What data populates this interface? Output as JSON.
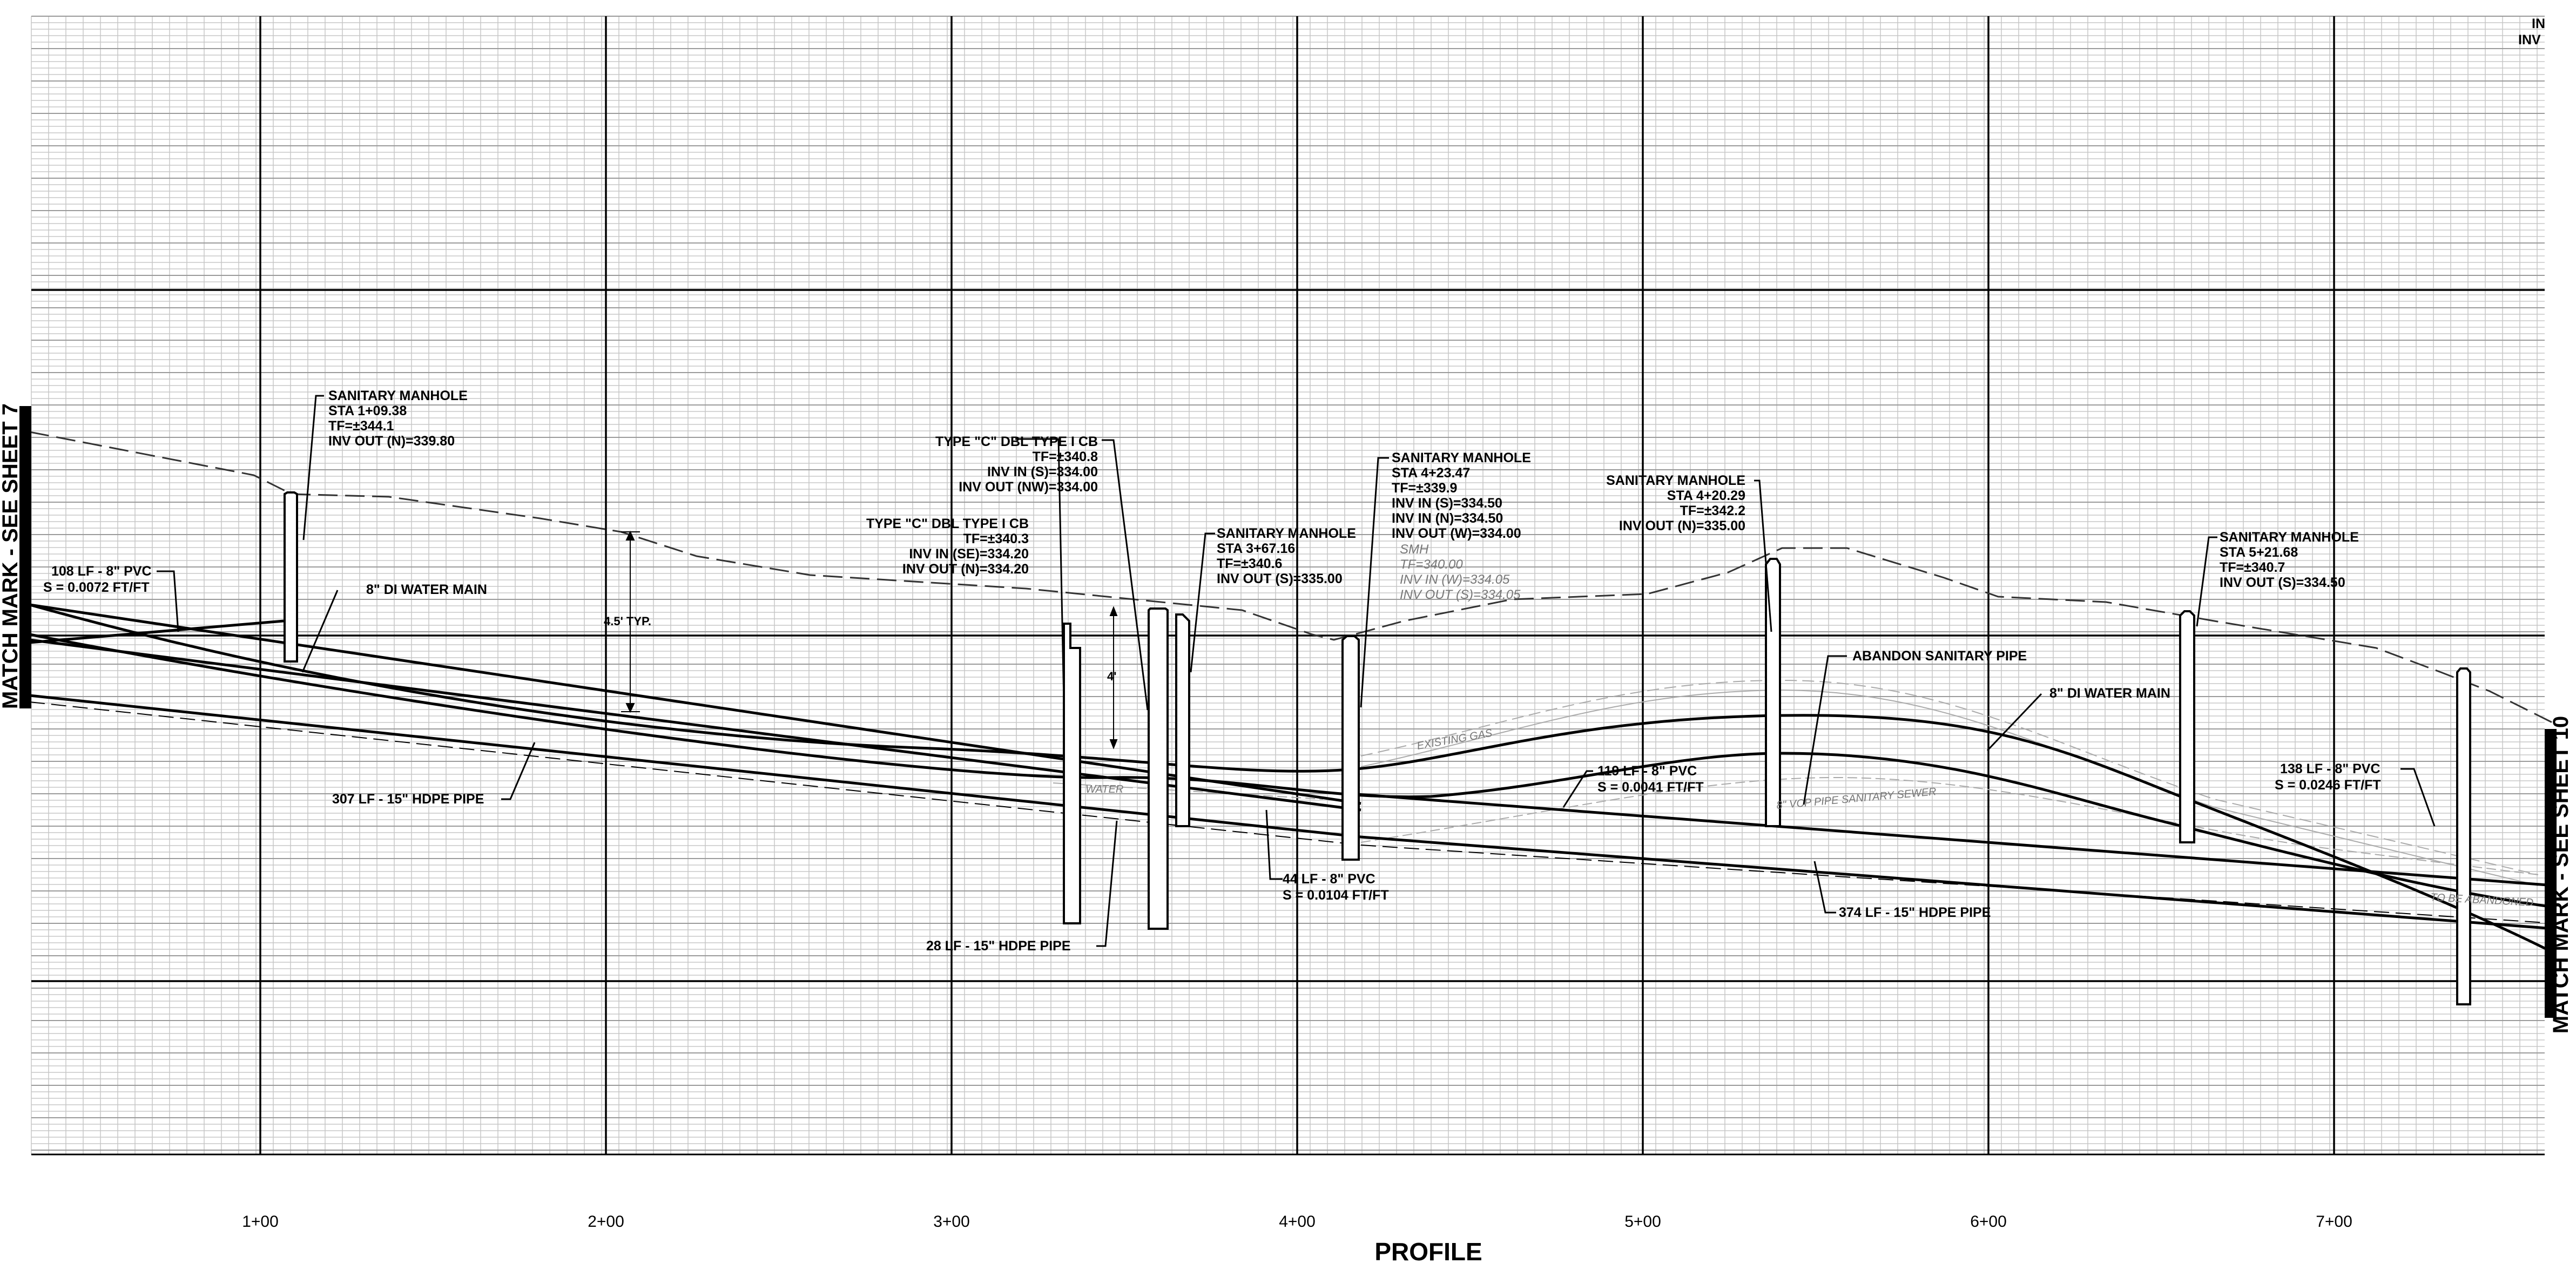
{
  "title": "PROFILE",
  "match_marks": {
    "left": "MATCH MARK - SEE SHEET 7",
    "right": "MATCH MARK - SEE SHEET 10"
  },
  "corner_text": {
    "line1": "IN",
    "line2": "INV"
  },
  "stations": [
    "1+00",
    "2+00",
    "3+00",
    "4+00",
    "5+00",
    "6+00",
    "7+00"
  ],
  "structures": {
    "smh_1": [
      "SANITARY MANHOLE",
      "STA 1+09.38",
      "TF=±344.1",
      "INV OUT (N)=339.80"
    ],
    "cb_dbl_a": [
      "TYPE \"C\" DBL TYPE I CB",
      "TF=±340.8",
      "INV IN (S)=334.00",
      "INV OUT (NW)=334.00"
    ],
    "cb_dbl_b": [
      "TYPE \"C\" DBL TYPE I CB",
      "TF=±340.3",
      "INV IN (SE)=334.20",
      "INV OUT (N)=334.20"
    ],
    "smh_3": [
      "SANITARY MANHOLE",
      "STA 3+67.16",
      "TF=±340.6",
      "INV OUT (S)=335.00"
    ],
    "smh_4a": [
      "SANITARY MANHOLE",
      "STA 4+23.47",
      "TF=±339.9",
      "INV IN (S)=334.50",
      "INV IN (N)=334.50",
      "INV OUT (W)=334.00"
    ],
    "smh_existing": [
      "SMH",
      "TF=340.00",
      "INV IN (W)=334.05",
      "INV OUT (S)=334.05"
    ],
    "smh_4b": [
      "SANITARY MANHOLE",
      "STA 4+20.29",
      "TF=±342.2",
      "INV OUT (N)=335.00"
    ],
    "smh_5": [
      "SANITARY MANHOLE",
      "STA 5+21.68",
      "TF=±340.7",
      "INV OUT (S)=334.50"
    ]
  },
  "pipes": {
    "pvc_108": [
      "108 LF - 8\" PVC",
      "S = 0.0072 FT/FT"
    ],
    "water_main_left": "8\" DI WATER MAIN",
    "hdpe_307": "307 LF - 15\" HDPE PIPE",
    "hdpe_28": "28 LF - 15\" HDPE PIPE",
    "pvc_44": [
      "44 LF - 8\" PVC",
      "S = 0.0104 FT/FT"
    ],
    "pvc_119": [
      "119 LF - 8\" PVC",
      "S = 0.0041 FT/FT"
    ],
    "abandon": "ABANDON SANITARY PIPE",
    "water_main_right": "8\" DI WATER MAIN",
    "hdpe_374": "374 LF - 15\" HDPE PIPE",
    "pvc_138": [
      "138 LF - 8\" PVC",
      "S = 0.0246 FT/FT"
    ]
  },
  "dimensions": {
    "typ": "4.5' TYP.",
    "four": "4'"
  },
  "existing_labels": {
    "gas": "EXISTING GAS",
    "water": "WATER",
    "sewer": "8\" VCP PIPE SANITARY SEWER",
    "abandoned": "TO BE ABANDONED"
  }
}
